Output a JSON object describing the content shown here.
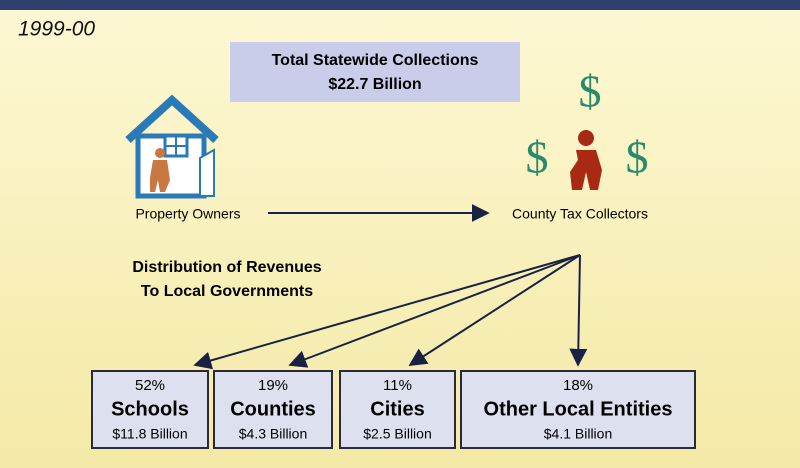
{
  "period": "1999-00",
  "summary": {
    "title": "Total Statewide Collections",
    "amount": "$22.7 Billion"
  },
  "source": "Property Owners",
  "collector": "County Tax Collectors",
  "distribution": {
    "line1": "Distribution of Revenues",
    "line2": "To Local Governments"
  },
  "recipients": [
    {
      "percent": "52%",
      "name": "Schools",
      "amount": "$11.8 Billion"
    },
    {
      "percent": "19%",
      "name": "Counties",
      "amount": "$4.3 Billion"
    },
    {
      "percent": "11%",
      "name": "Cities",
      "amount": "$2.5 Billion"
    },
    {
      "percent": "18%",
      "name": "Other Local Entities",
      "amount": "$4.1 Billion"
    }
  ]
}
